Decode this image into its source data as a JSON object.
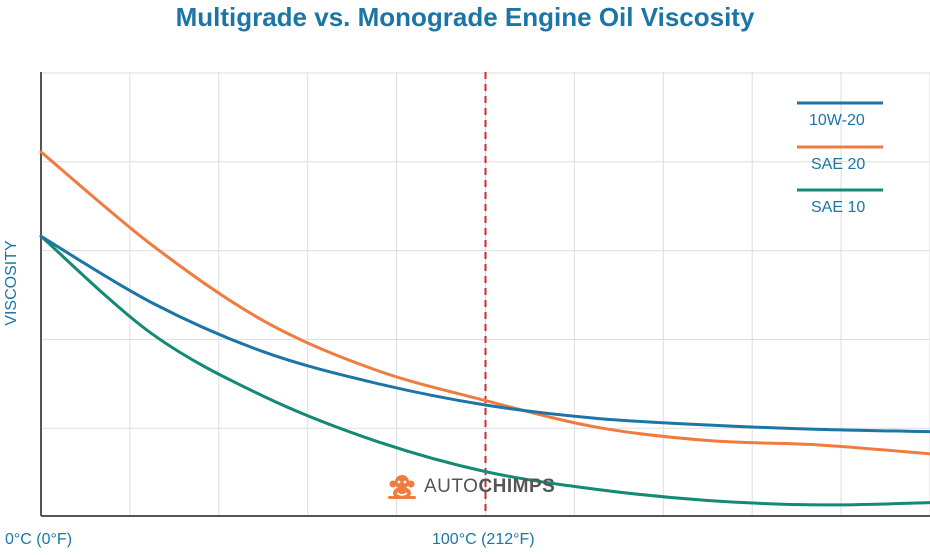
{
  "title": "Multigrade vs. Monograde Engine Oil Viscosity",
  "watermark": {
    "part1": "AUTO",
    "part2": "CHIMPS",
    "icon": "chimp-mechanic-logo"
  },
  "colors": {
    "title": "#1b75a6",
    "grid": "#dddddd",
    "axis": "#555555",
    "marker": "#d62728"
  },
  "chart_data": {
    "type": "line",
    "title": "Multigrade vs. Monograde Engine Oil Viscosity",
    "xlabel": "",
    "ylabel": "VISCOSITY",
    "x_ticks": [
      "0°C (0°F)",
      "100°C (212°F)"
    ],
    "xlim": [
      0,
      200
    ],
    "ylim": [
      0,
      100
    ],
    "grid": true,
    "legend_position": "top-right",
    "reference_line": {
      "x": 100,
      "style": "dashed",
      "color": "#d62728"
    },
    "x": [
      0,
      25,
      50,
      75,
      100,
      125,
      150,
      175,
      200
    ],
    "series": [
      {
        "name": "10W-20",
        "color": "#1b75a6",
        "values": [
          63,
          48,
          37,
          30,
          25,
          22,
          20.5,
          19.5,
          19
        ]
      },
      {
        "name": "SAE 20",
        "color": "#f07b3f",
        "values": [
          82,
          61,
          44,
          33,
          26,
          20,
          17,
          16,
          14
        ]
      },
      {
        "name": "SAE 10",
        "color": "#128a74",
        "values": [
          63,
          41,
          27,
          17,
          10,
          6,
          3.5,
          2.5,
          3
        ]
      }
    ]
  }
}
